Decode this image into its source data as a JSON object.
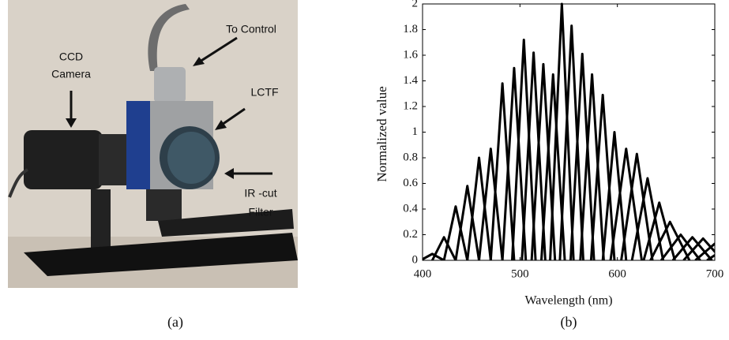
{
  "panel_a": {
    "labels": [
      "CCD",
      "Camera",
      "To Control",
      "LCTF",
      "IR -cut",
      "Filter"
    ],
    "caption": "(a)"
  },
  "chart_data": {
    "type": "line",
    "caption": "(b)",
    "x_label": "Wavelength (nm)",
    "y_label": "Normalized value",
    "color": "#000000",
    "xlim": [
      400,
      700
    ],
    "xticks": [
      400,
      500,
      600,
      700
    ],
    "ylim": [
      0,
      2
    ],
    "yticks": [
      0,
      0.2,
      0.4,
      0.6,
      0.8,
      1,
      1.2,
      1.4,
      1.6,
      1.8,
      2
    ],
    "series": [
      {
        "x": [
          398,
          410,
          422
        ],
        "values": [
          0,
          0.05,
          0
        ]
      },
      {
        "x": [
          410,
          422,
          434
        ],
        "values": [
          0,
          0.18,
          0
        ]
      },
      {
        "x": [
          422,
          434,
          446
        ],
        "values": [
          0,
          0.42,
          0
        ]
      },
      {
        "x": [
          434,
          446,
          458
        ],
        "values": [
          0,
          0.58,
          0
        ]
      },
      {
        "x": [
          446,
          458,
          470
        ],
        "values": [
          0,
          0.8,
          0
        ]
      },
      {
        "x": [
          458,
          470,
          482
        ],
        "values": [
          0,
          0.87,
          0
        ]
      },
      {
        "x": [
          470,
          482,
          494
        ],
        "values": [
          0,
          1.38,
          0
        ]
      },
      {
        "x": [
          482,
          494,
          506
        ],
        "values": [
          0,
          1.5,
          0
        ]
      },
      {
        "x": [
          492,
          504,
          516
        ],
        "values": [
          0,
          1.72,
          0
        ]
      },
      {
        "x": [
          502,
          514,
          526
        ],
        "values": [
          0,
          1.62,
          0
        ]
      },
      {
        "x": [
          512,
          524,
          536
        ],
        "values": [
          0,
          1.53,
          0
        ]
      },
      {
        "x": [
          522,
          534,
          546
        ],
        "values": [
          0,
          1.45,
          0
        ]
      },
      {
        "x": [
          531,
          543,
          555
        ],
        "values": [
          0,
          2,
          0
        ]
      },
      {
        "x": [
          541,
          553,
          565
        ],
        "values": [
          0,
          1.83,
          0
        ]
      },
      {
        "x": [
          552,
          564,
          576
        ],
        "values": [
          0,
          1.61,
          0
        ]
      },
      {
        "x": [
          562,
          574,
          586
        ],
        "values": [
          0,
          1.45,
          0
        ]
      },
      {
        "x": [
          573,
          585,
          597
        ],
        "values": [
          0,
          1.29,
          0
        ]
      },
      {
        "x": [
          585,
          597,
          609
        ],
        "values": [
          0,
          1,
          0
        ]
      },
      {
        "x": [
          593,
          609,
          625
        ],
        "values": [
          0,
          0.87,
          0
        ]
      },
      {
        "x": [
          604,
          620,
          636
        ],
        "values": [
          0,
          0.83,
          0
        ]
      },
      {
        "x": [
          615,
          631,
          647
        ],
        "values": [
          0,
          0.64,
          0
        ]
      },
      {
        "x": [
          627,
          643,
          659
        ],
        "values": [
          0,
          0.45,
          0
        ]
      },
      {
        "x": [
          634,
          654,
          674
        ],
        "values": [
          0,
          0.3,
          0
        ]
      },
      {
        "x": [
          645,
          665,
          685
        ],
        "values": [
          0,
          0.2,
          0
        ]
      },
      {
        "x": [
          657,
          677,
          697
        ],
        "values": [
          0,
          0.18,
          0
        ]
      },
      {
        "x": [
          668,
          688,
          708
        ],
        "values": [
          0,
          0.17,
          0
        ]
      },
      {
        "x": [
          680,
          700,
          720
        ],
        "values": [
          0,
          0.13,
          0
        ]
      },
      {
        "x": [
          692,
          712,
          732
        ],
        "values": [
          0,
          0.1,
          0
        ]
      }
    ]
  }
}
